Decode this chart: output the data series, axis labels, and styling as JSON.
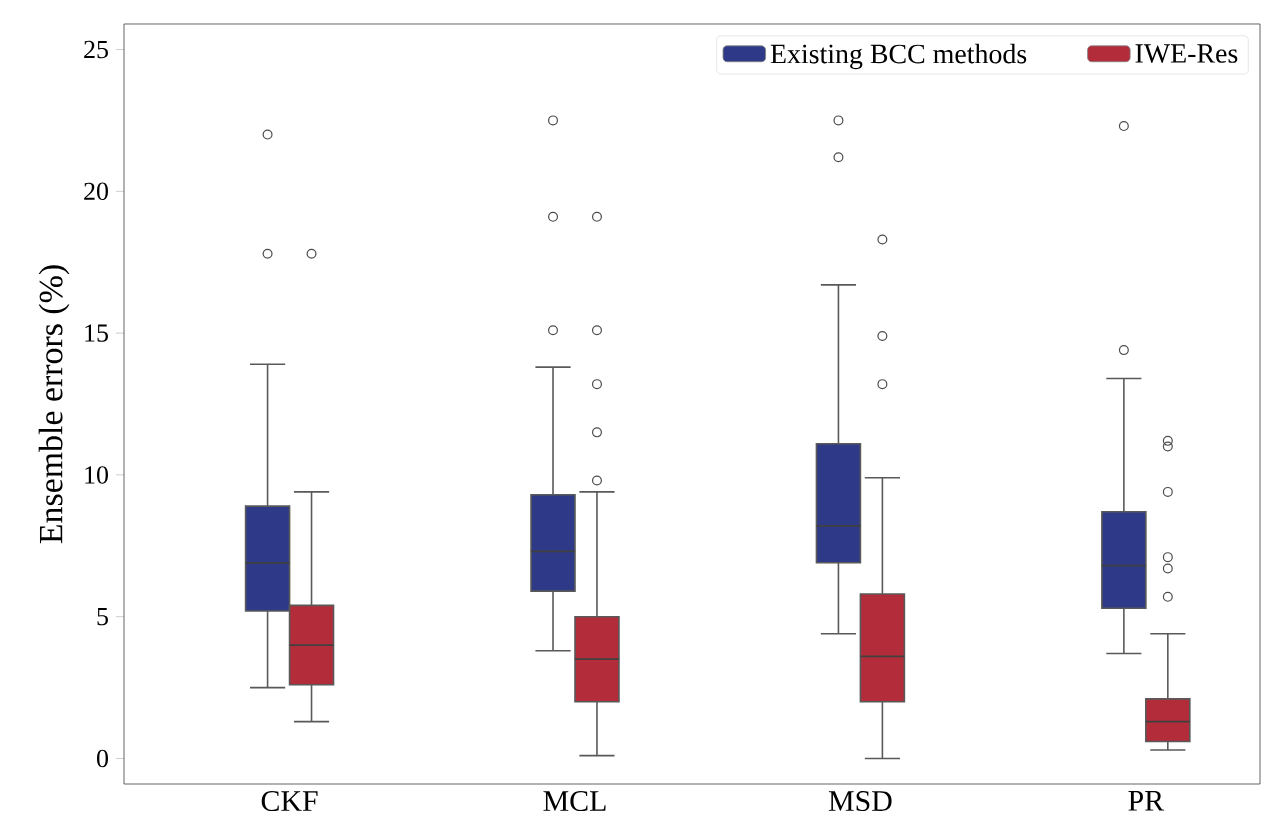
{
  "chart_data": {
    "type": "box",
    "ylabel": "Ensemble errors (%)",
    "categories": [
      "CKF",
      "MCL",
      "MSD",
      "PR"
    ],
    "series": [
      {
        "name": "Existing BCC methods",
        "color": "#2e3a87",
        "boxes": [
          {
            "low": 2.5,
            "q1": 5.2,
            "median": 6.9,
            "q3": 8.9,
            "high": 13.9,
            "outliers": [
              22.0,
              17.8
            ]
          },
          {
            "low": 3.8,
            "q1": 5.9,
            "median": 7.3,
            "q3": 9.3,
            "high": 13.8,
            "outliers": [
              22.5,
              19.1,
              15.1
            ]
          },
          {
            "low": 4.4,
            "q1": 6.9,
            "median": 8.2,
            "q3": 11.1,
            "high": 16.7,
            "outliers": [
              22.5,
              21.2
            ]
          },
          {
            "low": 3.7,
            "q1": 5.3,
            "median": 6.8,
            "q3": 8.7,
            "high": 13.4,
            "outliers": [
              22.3,
              14.4
            ]
          }
        ]
      },
      {
        "name": "IWE-Res",
        "color": "#b22c3a",
        "boxes": [
          {
            "low": 1.3,
            "q1": 2.6,
            "median": 4.0,
            "q3": 5.4,
            "high": 9.4,
            "outliers": [
              17.8
            ]
          },
          {
            "low": 0.1,
            "q1": 2.0,
            "median": 3.5,
            "q3": 5.0,
            "high": 9.4,
            "outliers": [
              19.1,
              15.1,
              13.2,
              11.5,
              9.8
            ]
          },
          {
            "low": 0.0,
            "q1": 2.0,
            "median": 3.6,
            "q3": 5.8,
            "high": 9.9,
            "outliers": [
              18.3,
              14.9,
              13.2
            ]
          },
          {
            "low": 0.3,
            "q1": 0.6,
            "median": 1.3,
            "q3": 2.1,
            "high": 4.4,
            "outliers": [
              11.2,
              11.0,
              9.4,
              7.1,
              6.7,
              5.7
            ]
          }
        ]
      }
    ],
    "ylim": [
      -0.9,
      25.9
    ],
    "yticks": [
      0,
      5,
      10,
      15,
      20,
      25
    ],
    "legend": "top right"
  }
}
